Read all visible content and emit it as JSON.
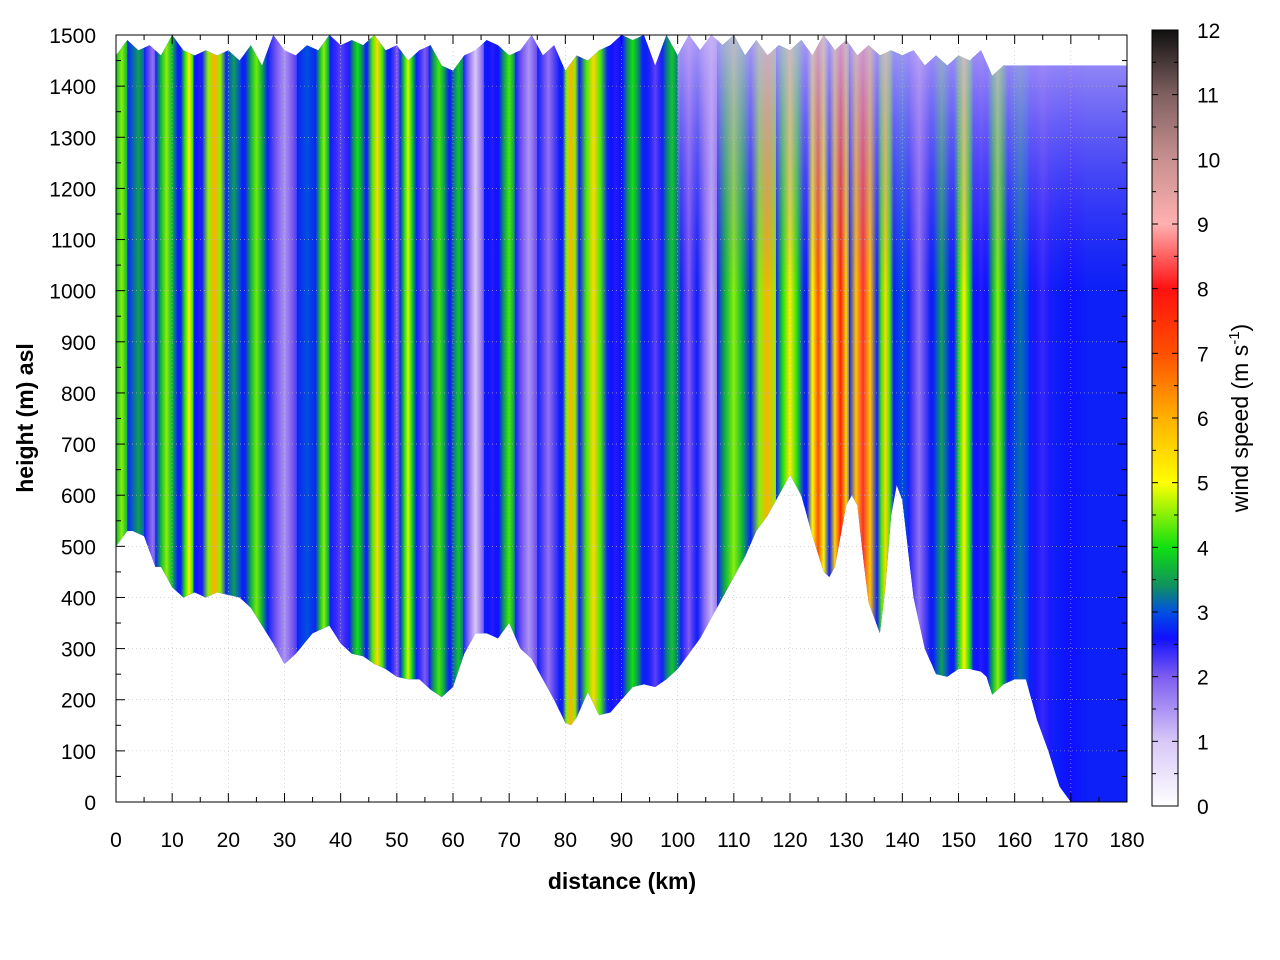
{
  "chart_data": {
    "type": "heatmap",
    "title": "",
    "xlabel": "distance (km)",
    "ylabel": "height (m) asl",
    "xlim": [
      0,
      180
    ],
    "ylim": [
      0,
      1500
    ],
    "x_ticks": [
      "0",
      "10",
      "20",
      "30",
      "40",
      "50",
      "60",
      "70",
      "80",
      "90",
      "100",
      "110",
      "120",
      "130",
      "140",
      "150",
      "160",
      "170",
      "180"
    ],
    "y_ticks": [
      "0",
      "100",
      "200",
      "300",
      "400",
      "500",
      "600",
      "700",
      "800",
      "900",
      "1000",
      "1100",
      "1200",
      "1300",
      "1400",
      "1500"
    ],
    "grid": true,
    "colorbar": {
      "label": "wind speed (m s",
      "label_sup": "-1",
      "label_end": ")",
      "range": [
        0,
        12
      ],
      "ticks": [
        "0",
        "1",
        "2",
        "3",
        "4",
        "5",
        "6",
        "7",
        "8",
        "9",
        "10",
        "11",
        "12"
      ],
      "palette": [
        {
          "v": 0,
          "color": "#ffffff"
        },
        {
          "v": 1,
          "color": "#d8c8f8"
        },
        {
          "v": 2,
          "color": "#7d5cf0"
        },
        {
          "v": 2.6,
          "color": "#1010ff"
        },
        {
          "v": 3,
          "color": "#0050e0"
        },
        {
          "v": 3.4,
          "color": "#109060"
        },
        {
          "v": 4,
          "color": "#10e010"
        },
        {
          "v": 5,
          "color": "#ffff00"
        },
        {
          "v": 6,
          "color": "#ffb000"
        },
        {
          "v": 7,
          "color": "#ff5000"
        },
        {
          "v": 8,
          "color": "#ff1010"
        },
        {
          "v": 9,
          "color": "#ffb0b0"
        },
        {
          "v": 10,
          "color": "#c89090"
        },
        {
          "v": 11,
          "color": "#806060"
        },
        {
          "v": 12,
          "color": "#101010"
        }
      ]
    },
    "terrain_profile": {
      "x": [
        0,
        2,
        3,
        5,
        7,
        8,
        10,
        12,
        14,
        16,
        18,
        20,
        22,
        24,
        26,
        28,
        30,
        32,
        35,
        38,
        40,
        42,
        44,
        46,
        48,
        50,
        52,
        54,
        56,
        58,
        60,
        62,
        64,
        66,
        68,
        70,
        72,
        74,
        76,
        78,
        80,
        81,
        82,
        84,
        86,
        88,
        90,
        92,
        94,
        96,
        98,
        100,
        102,
        104,
        106,
        108,
        110,
        112,
        114,
        116,
        118,
        120,
        122,
        124,
        126,
        127,
        128,
        130,
        131,
        132,
        133,
        134,
        135,
        136,
        137,
        138,
        139,
        140,
        142,
        144,
        146,
        148,
        150,
        152,
        154,
        155,
        156,
        158,
        160,
        162,
        164,
        166,
        168,
        170,
        172,
        174,
        176,
        178,
        180
      ],
      "y": [
        500,
        530,
        530,
        520,
        460,
        460,
        420,
        400,
        410,
        400,
        410,
        405,
        400,
        380,
        345,
        310,
        270,
        290,
        330,
        345,
        310,
        290,
        285,
        270,
        260,
        245,
        240,
        240,
        220,
        205,
        225,
        290,
        330,
        330,
        320,
        350,
        300,
        280,
        240,
        200,
        155,
        150,
        165,
        215,
        170,
        175,
        200,
        225,
        230,
        225,
        240,
        260,
        290,
        320,
        360,
        400,
        440,
        480,
        530,
        560,
        600,
        640,
        600,
        520,
        450,
        440,
        460,
        580,
        600,
        580,
        480,
        390,
        360,
        330,
        420,
        560,
        620,
        590,
        400,
        300,
        250,
        245,
        260,
        260,
        255,
        245,
        210,
        230,
        240,
        240,
        160,
        100,
        30,
        0,
        0,
        0,
        0,
        0,
        0
      ]
    },
    "top_profile": {
      "x": [
        0,
        2,
        4,
        6,
        8,
        10,
        12,
        14,
        16,
        18,
        20,
        22,
        24,
        26,
        28,
        30,
        32,
        34,
        36,
        38,
        40,
        42,
        44,
        46,
        48,
        50,
        52,
        54,
        56,
        58,
        60,
        62,
        64,
        66,
        68,
        70,
        72,
        74,
        76,
        78,
        80,
        82,
        84,
        86,
        88,
        90,
        92,
        94,
        96,
        98,
        100,
        102,
        104,
        106,
        108,
        110,
        112,
        114,
        116,
        118,
        120,
        122,
        124,
        126,
        128,
        130,
        132,
        134,
        136,
        138,
        140,
        142,
        144,
        146,
        148,
        150,
        152,
        154,
        156,
        158,
        160,
        162,
        164,
        166,
        168,
        170,
        172,
        174,
        176,
        178,
        180
      ],
      "y": [
        1460,
        1490,
        1470,
        1480,
        1460,
        1500,
        1470,
        1460,
        1470,
        1460,
        1470,
        1450,
        1480,
        1440,
        1500,
        1470,
        1460,
        1480,
        1470,
        1500,
        1480,
        1490,
        1480,
        1500,
        1470,
        1480,
        1450,
        1470,
        1480,
        1440,
        1430,
        1460,
        1470,
        1490,
        1480,
        1460,
        1470,
        1500,
        1460,
        1480,
        1430,
        1460,
        1450,
        1470,
        1480,
        1500,
        1490,
        1500,
        1440,
        1500,
        1460,
        1500,
        1470,
        1500,
        1480,
        1500,
        1460,
        1490,
        1460,
        1480,
        1470,
        1490,
        1460,
        1500,
        1470,
        1490,
        1460,
        1480,
        1460,
        1470,
        1460,
        1470,
        1440,
        1460,
        1440,
        1460,
        1450,
        1470,
        1420,
        1440,
        1440,
        1440,
        1440,
        1440,
        1440,
        1440,
        1440,
        1440,
        1440,
        1440,
        1440
      ]
    },
    "bands": [
      {
        "x": 1,
        "w": 2.0,
        "v": 4.5
      },
      {
        "x": 4,
        "w": 2.0,
        "v": 3.5
      },
      {
        "x": 6.5,
        "w": 1.5,
        "v": 1.8
      },
      {
        "x": 9,
        "w": 2.0,
        "v": 4.5
      },
      {
        "x": 13,
        "w": 1.5,
        "v": 5.2
      },
      {
        "x": 15,
        "w": 1.2,
        "v": 2.5
      },
      {
        "x": 17.5,
        "w": 2.2,
        "v": 6.0
      },
      {
        "x": 21,
        "w": 1.5,
        "v": 3.5
      },
      {
        "x": 25,
        "w": 2.0,
        "v": 4.4
      },
      {
        "x": 30,
        "w": 3.0,
        "v": 1.5
      },
      {
        "x": 34,
        "w": 1.8,
        "v": 3.0
      },
      {
        "x": 37,
        "w": 1.5,
        "v": 4.5
      },
      {
        "x": 40,
        "w": 2.0,
        "v": 2.2
      },
      {
        "x": 43,
        "w": 1.5,
        "v": 4.0
      },
      {
        "x": 46.5,
        "w": 1.8,
        "v": 5.5
      },
      {
        "x": 50,
        "w": 1.2,
        "v": 2.0
      },
      {
        "x": 52,
        "w": 1.5,
        "v": 4.8
      },
      {
        "x": 55,
        "w": 1.5,
        "v": 2.0
      },
      {
        "x": 57.5,
        "w": 1.8,
        "v": 4.2
      },
      {
        "x": 61,
        "w": 1.5,
        "v": 3.8
      },
      {
        "x": 64,
        "w": 2.2,
        "v": 1.0
      },
      {
        "x": 67,
        "w": 1.5,
        "v": 2.5
      },
      {
        "x": 70,
        "w": 1.8,
        "v": 4.2
      },
      {
        "x": 73.5,
        "w": 2.5,
        "v": 1.5
      },
      {
        "x": 77,
        "w": 2.0,
        "v": 1.8
      },
      {
        "x": 81,
        "w": 1.5,
        "v": 6.0
      },
      {
        "x": 85,
        "w": 2.5,
        "v": 5.5
      },
      {
        "x": 89,
        "w": 1.5,
        "v": 2.5
      },
      {
        "x": 92,
        "w": 1.8,
        "v": 4.0
      },
      {
        "x": 96,
        "w": 1.5,
        "v": 2.2
      },
      {
        "x": 99,
        "w": 1.8,
        "v": 3.8
      },
      {
        "x": 102,
        "w": 1.5,
        "v": 2.0
      },
      {
        "x": 106,
        "w": 2.5,
        "v": 1.2
      },
      {
        "x": 110,
        "w": 3.0,
        "v": 4.5
      },
      {
        "x": 116,
        "w": 3.0,
        "v": 6.0
      },
      {
        "x": 120,
        "w": 2.5,
        "v": 5.2
      },
      {
        "x": 125,
        "w": 2.0,
        "v": 7.0
      },
      {
        "x": 129,
        "w": 2.0,
        "v": 7.8
      },
      {
        "x": 133,
        "w": 2.5,
        "v": 8.2
      },
      {
        "x": 137,
        "w": 1.5,
        "v": 5.5
      },
      {
        "x": 140,
        "w": 1.5,
        "v": 3.0
      },
      {
        "x": 143,
        "w": 2.0,
        "v": 1.8
      },
      {
        "x": 147,
        "w": 1.5,
        "v": 3.5
      },
      {
        "x": 151,
        "w": 1.8,
        "v": 5.2
      },
      {
        "x": 154,
        "w": 1.5,
        "v": 2.5
      },
      {
        "x": 157,
        "w": 1.8,
        "v": 4.5
      },
      {
        "x": 161,
        "w": 2.0,
        "v": 3.2
      },
      {
        "x": 165,
        "w": 2.5,
        "v": 2.4
      },
      {
        "x": 170,
        "w": 3.0,
        "v": 2.6
      },
      {
        "x": 176,
        "w": 3.0,
        "v": 2.7
      }
    ]
  }
}
